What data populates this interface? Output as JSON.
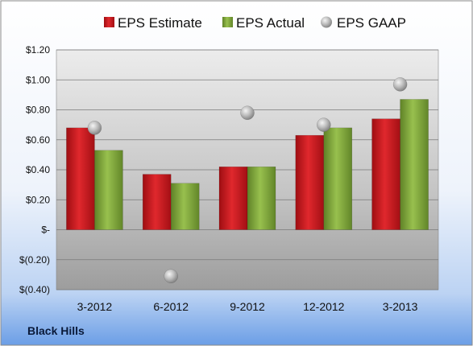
{
  "company": "Black Hills",
  "colors": {
    "estimate": "#c8171c",
    "actual": "#7fa53a",
    "gaap": "#a9a9a9"
  },
  "chart_data": {
    "type": "bar",
    "categories": [
      "3-2012",
      "6-2012",
      "9-2012",
      "12-2012",
      "3-2013"
    ],
    "series": [
      {
        "name": "EPS Estimate",
        "type": "bar",
        "values": [
          0.68,
          0.37,
          0.42,
          0.63,
          0.74
        ]
      },
      {
        "name": "EPS Actual",
        "type": "bar",
        "values": [
          0.53,
          0.31,
          0.42,
          0.68,
          0.87
        ]
      },
      {
        "name": "EPS GAAP",
        "type": "scatter",
        "values": [
          0.68,
          -0.31,
          0.78,
          0.7,
          0.97
        ]
      }
    ],
    "y_ticks": [
      {
        "value": 1.2,
        "label": "$1.20"
      },
      {
        "value": 1.0,
        "label": "$1.00"
      },
      {
        "value": 0.8,
        "label": "$0.80"
      },
      {
        "value": 0.6,
        "label": "$0.60"
      },
      {
        "value": 0.4,
        "label": "$0.40"
      },
      {
        "value": 0.2,
        "label": "$0.20"
      },
      {
        "value": 0.0,
        "label": "$-"
      },
      {
        "value": -0.2,
        "label": "$(0.20)"
      },
      {
        "value": -0.4,
        "label": "$(0.40)"
      }
    ],
    "ylim": [
      -0.4,
      1.2
    ],
    "legend_position": "top",
    "grid": true
  }
}
